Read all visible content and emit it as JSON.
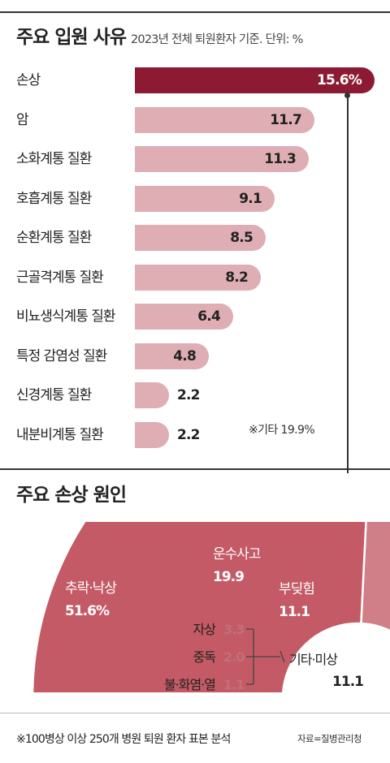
{
  "chart_data": [
    {
      "type": "bar",
      "orientation": "horizontal",
      "title": "주요 입원 사유",
      "subtitle": "2023년 전체 퇴원환자 기준. 단위: %",
      "categories": [
        "손상",
        "암",
        "소화계통 질환",
        "호흡계통 질환",
        "순환계통 질환",
        "근골격계통 질환",
        "비뇨생식계통 질환",
        "특정 감염성 질환",
        "신경계통 질환",
        "내분비계통 질환"
      ],
      "values": [
        15.6,
        11.7,
        11.3,
        9.1,
        8.5,
        8.2,
        6.4,
        4.8,
        2.2,
        2.2
      ],
      "value_labels": [
        "15.6%",
        "11.7",
        "11.3",
        "9.1",
        "8.5",
        "8.2",
        "6.4",
        "4.8",
        "2.2",
        "2.2"
      ],
      "note": "※기타 19.9%",
      "colors": {
        "highlight": "#8c1a32",
        "bar": "#deaeb4"
      }
    },
    {
      "type": "pie",
      "style": "half-donut",
      "title": "주요 손상 원인",
      "slices": [
        {
          "label": "추락·낙상",
          "value": 51.6,
          "value_label": "51.6%",
          "color": "#c45a66"
        },
        {
          "label": "운수사고",
          "value": 19.9,
          "value_label": "19.9",
          "color": "#d07e88"
        },
        {
          "label": "부딪힘",
          "value": 11.1,
          "value_label": "11.1",
          "color": "#d58e97"
        },
        {
          "label": "자상",
          "value": 3.3,
          "value_label": "3.3",
          "color": "#e2a8ae"
        },
        {
          "label": "중독",
          "value": 2.0,
          "value_label": "2.0",
          "color": "#e8b8bd"
        },
        {
          "label": "불·화염·열",
          "value": 1.1,
          "value_label": "1.1",
          "color": "#eec7cb"
        },
        {
          "label": "기타·미상",
          "value": 11.1,
          "value_label": "11.1",
          "color": "#e6e6e6"
        }
      ]
    }
  ],
  "footnote": "※100병상 이상 250개 병원 퇴원 환자 표본 분석",
  "source": "자료=질병관리청"
}
